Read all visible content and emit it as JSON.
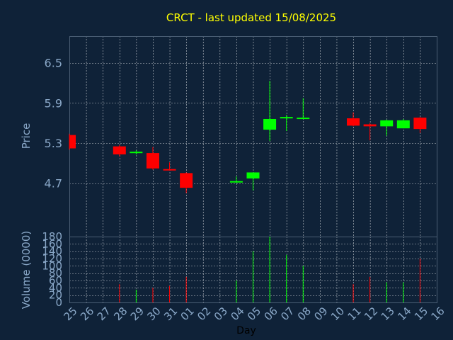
{
  "chart_data": {
    "type": "candlestick",
    "title": "CRCT - last updated 15/08/2025",
    "price": {
      "ylabel": "Price",
      "ylim": [
        3.9,
        6.9
      ],
      "yticks": [
        "4.7",
        "5.3",
        "5.9",
        "6.5"
      ]
    },
    "volume": {
      "ylabel": "Volume (0000)",
      "ylim": [
        0,
        180
      ],
      "yticks": [
        "0",
        "20",
        "40",
        "60",
        "80",
        "100",
        "120",
        "140",
        "160",
        "180"
      ]
    },
    "xlabel": "Day",
    "x_labels": [
      "25",
      "26",
      "27",
      "28",
      "29",
      "30",
      "31",
      "01",
      "02",
      "03",
      "04",
      "05",
      "06",
      "07",
      "08",
      "09",
      "10",
      "11",
      "12",
      "13",
      "14",
      "15",
      "16"
    ],
    "candles": [
      {
        "day": "25",
        "open": 5.42,
        "high": 5.44,
        "low": 5.2,
        "close": 5.22,
        "volume": 0
      },
      {
        "day": "28",
        "open": 5.25,
        "high": 5.27,
        "low": 5.1,
        "close": 5.13,
        "volume": 50
      },
      {
        "day": "29",
        "open": 5.15,
        "high": 5.19,
        "low": 5.13,
        "close": 5.17,
        "volume": 35
      },
      {
        "day": "30",
        "open": 5.15,
        "high": 5.24,
        "low": 4.9,
        "close": 4.92,
        "volume": 40
      },
      {
        "day": "31",
        "open": 4.91,
        "high": 5.01,
        "low": 4.89,
        "close": 4.89,
        "volume": 45
      },
      {
        "day": "01",
        "open": 4.85,
        "high": 4.86,
        "low": 4.55,
        "close": 4.63,
        "volume": 70
      },
      {
        "day": "04",
        "open": 4.71,
        "high": 4.8,
        "low": 4.7,
        "close": 4.73,
        "volume": 60
      },
      {
        "day": "05",
        "open": 4.77,
        "high": 4.86,
        "low": 4.59,
        "close": 4.86,
        "volume": 140
      },
      {
        "day": "06",
        "open": 5.5,
        "high": 6.23,
        "low": 5.33,
        "close": 5.66,
        "volume": 180
      },
      {
        "day": "07",
        "open": 5.67,
        "high": 5.72,
        "low": 5.48,
        "close": 5.69,
        "volume": 130
      },
      {
        "day": "08",
        "open": 5.66,
        "high": 5.97,
        "low": 5.66,
        "close": 5.68,
        "volume": 100
      },
      {
        "day": "11",
        "open": 5.67,
        "high": 5.76,
        "low": 5.55,
        "close": 5.56,
        "volume": 50
      },
      {
        "day": "12",
        "open": 5.58,
        "high": 5.6,
        "low": 5.34,
        "close": 5.55,
        "volume": 70
      },
      {
        "day": "13",
        "open": 5.55,
        "high": 5.65,
        "low": 5.41,
        "close": 5.64,
        "volume": 55
      },
      {
        "day": "14",
        "open": 5.52,
        "high": 5.66,
        "low": 5.52,
        "close": 5.64,
        "volume": 55
      },
      {
        "day": "15",
        "open": 5.68,
        "high": 5.69,
        "low": 5.45,
        "close": 5.51,
        "volume": 120
      }
    ],
    "colors": {
      "up": "#00ff00",
      "down": "#ff0000",
      "grid": "#ffffff",
      "title": "#ffff00",
      "axis_text": "#8aa8c8",
      "background": "#0f2238"
    },
    "grid": true
  }
}
